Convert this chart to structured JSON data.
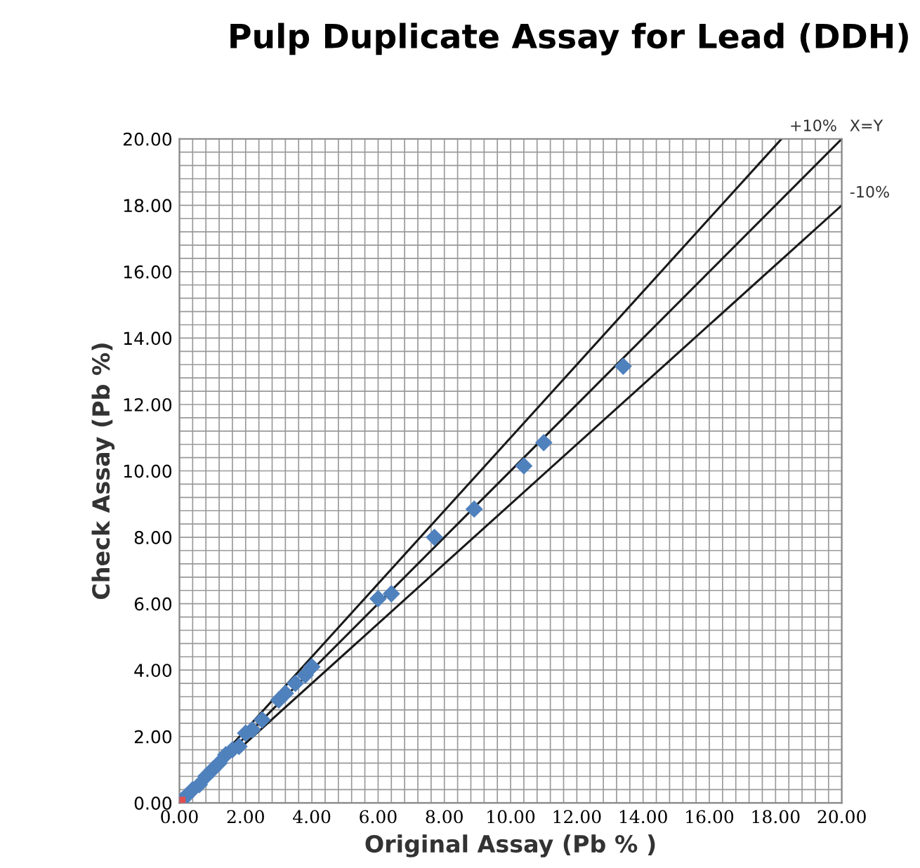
{
  "chart_data": {
    "type": "scatter",
    "title": "Pulp Duplicate Assay for Lead (DDH)",
    "xlabel": "Original Assay (Pb % )",
    "ylabel": "Check Assay (Pb %)",
    "xlim": [
      0,
      20
    ],
    "ylim": [
      0,
      20
    ],
    "xticks": [
      {
        "value": 0,
        "label": "0.00"
      },
      {
        "value": 0.4,
        "label": null
      },
      {
        "value": 0.8,
        "label": null
      },
      {
        "value": 1.2,
        "label": null
      },
      {
        "value": 1.6,
        "label": null
      },
      {
        "value": 2,
        "label": "2.00"
      },
      {
        "value": 2.4,
        "label": null
      },
      {
        "value": 2.8,
        "label": null
      },
      {
        "value": 3.2,
        "label": null
      },
      {
        "value": 3.6,
        "label": null
      },
      {
        "value": 4,
        "label": "4.00"
      },
      {
        "value": 4.4,
        "label": null
      },
      {
        "value": 4.8,
        "label": null
      },
      {
        "value": 5.2,
        "label": null
      },
      {
        "value": 5.6,
        "label": null
      },
      {
        "value": 6,
        "label": "6.00"
      },
      {
        "value": 6.4,
        "label": null
      },
      {
        "value": 6.8,
        "label": null
      },
      {
        "value": 7.2,
        "label": null
      },
      {
        "value": 7.6,
        "label": null
      },
      {
        "value": 8,
        "label": "8.00"
      },
      {
        "value": 8.4,
        "label": null
      },
      {
        "value": 8.8,
        "label": null
      },
      {
        "value": 9.2,
        "label": null
      },
      {
        "value": 9.6,
        "label": null
      },
      {
        "value": 10,
        "label": "10.00"
      },
      {
        "value": 10.4,
        "label": null
      },
      {
        "value": 10.8,
        "label": null
      },
      {
        "value": 11.2,
        "label": null
      },
      {
        "value": 11.6,
        "label": null
      },
      {
        "value": 12,
        "label": "12.00"
      },
      {
        "value": 12.4,
        "label": null
      },
      {
        "value": 12.8,
        "label": null
      },
      {
        "value": 13.2,
        "label": null
      },
      {
        "value": 13.6,
        "label": null
      },
      {
        "value": 14,
        "label": "14.00"
      },
      {
        "value": 14.4,
        "label": null
      },
      {
        "value": 14.8,
        "label": null
      },
      {
        "value": 15.2,
        "label": null
      },
      {
        "value": 15.6,
        "label": null
      },
      {
        "value": 16,
        "label": "16.00"
      },
      {
        "value": 16.4,
        "label": null
      },
      {
        "value": 16.8,
        "label": null
      },
      {
        "value": 17.2,
        "label": null
      },
      {
        "value": 17.6,
        "label": null
      },
      {
        "value": 18,
        "label": "18.00"
      },
      {
        "value": 18.4,
        "label": null
      },
      {
        "value": 18.8,
        "label": null
      },
      {
        "value": 19.2,
        "label": null
      },
      {
        "value": 19.6,
        "label": null
      },
      {
        "value": 20,
        "label": "20.00"
      }
    ],
    "yticks": [
      {
        "value": 0,
        "label": "0.00"
      },
      {
        "value": 0.4,
        "label": null
      },
      {
        "value": 0.8,
        "label": null
      },
      {
        "value": 1.2,
        "label": null
      },
      {
        "value": 1.6,
        "label": null
      },
      {
        "value": 2,
        "label": "2.00"
      },
      {
        "value": 2.4,
        "label": null
      },
      {
        "value": 2.8,
        "label": null
      },
      {
        "value": 3.2,
        "label": null
      },
      {
        "value": 3.6,
        "label": null
      },
      {
        "value": 4,
        "label": "4.00"
      },
      {
        "value": 4.4,
        "label": null
      },
      {
        "value": 4.8,
        "label": null
      },
      {
        "value": 5.2,
        "label": null
      },
      {
        "value": 5.6,
        "label": null
      },
      {
        "value": 6,
        "label": "6.00"
      },
      {
        "value": 6.4,
        "label": null
      },
      {
        "value": 6.8,
        "label": null
      },
      {
        "value": 7.2,
        "label": null
      },
      {
        "value": 7.6,
        "label": null
      },
      {
        "value": 8,
        "label": "8.00"
      },
      {
        "value": 8.4,
        "label": null
      },
      {
        "value": 8.8,
        "label": null
      },
      {
        "value": 9.2,
        "label": null
      },
      {
        "value": 9.6,
        "label": null
      },
      {
        "value": 10,
        "label": "10.00"
      },
      {
        "value": 10.4,
        "label": null
      },
      {
        "value": 10.8,
        "label": null
      },
      {
        "value": 11.2,
        "label": null
      },
      {
        "value": 11.6,
        "label": null
      },
      {
        "value": 12,
        "label": "12.00"
      },
      {
        "value": 12.4,
        "label": null
      },
      {
        "value": 12.8,
        "label": null
      },
      {
        "value": 13.2,
        "label": null
      },
      {
        "value": 13.6,
        "label": null
      },
      {
        "value": 14,
        "label": "14.00"
      },
      {
        "value": 14.4,
        "label": null
      },
      {
        "value": 14.8,
        "label": null
      },
      {
        "value": 15.2,
        "label": null
      },
      {
        "value": 15.6,
        "label": null
      },
      {
        "value": 16,
        "label": "16.00"
      },
      {
        "value": 16.4,
        "label": null
      },
      {
        "value": 16.8,
        "label": null
      },
      {
        "value": 17.2,
        "label": null
      },
      {
        "value": 17.6,
        "label": null
      },
      {
        "value": 18,
        "label": "18.00"
      },
      {
        "value": 18.4,
        "label": null
      },
      {
        "value": 18.8,
        "label": null
      },
      {
        "value": 19.2,
        "label": null
      },
      {
        "value": 19.6,
        "label": null
      },
      {
        "value": 20,
        "label": "20.00"
      }
    ],
    "grid": true,
    "legend": false,
    "series": [
      {
        "color": "#4f81bd",
        "marker": "diamond",
        "x": [
          13.4,
          11.0,
          10.4,
          8.9,
          7.7,
          6.0,
          6.4,
          4.0,
          3.8,
          3.5,
          3.2,
          3.0,
          2.5,
          2.2,
          2.0,
          1.8,
          1.6,
          1.4,
          1.2,
          1.0,
          0.8,
          0.6,
          0.4,
          0.2,
          0.1
        ],
        "values": [
          13.15,
          10.85,
          10.15,
          8.85,
          8.0,
          6.15,
          6.3,
          4.1,
          3.85,
          3.6,
          3.3,
          3.1,
          2.5,
          2.2,
          2.1,
          1.7,
          1.6,
          1.45,
          1.2,
          1.0,
          0.8,
          0.55,
          0.4,
          0.2,
          0.1
        ]
      },
      {
        "color": "#e05050",
        "marker": "square",
        "x": [
          0
        ],
        "values": [
          0
        ]
      },
      {
        "type": "line",
        "name": "+10%",
        "color": "#1a1a1a",
        "x": [
          0,
          18.18
        ],
        "values": [
          0,
          20
        ]
      },
      {
        "type": "line",
        "name": "X=Y",
        "color": "#1a1a1a",
        "x": [
          0,
          20
        ],
        "values": [
          0,
          20
        ]
      },
      {
        "type": "line",
        "name": "-10%",
        "color": "#1a1a1a",
        "x": [
          0,
          20
        ],
        "values": [
          0,
          18
        ]
      }
    ]
  }
}
